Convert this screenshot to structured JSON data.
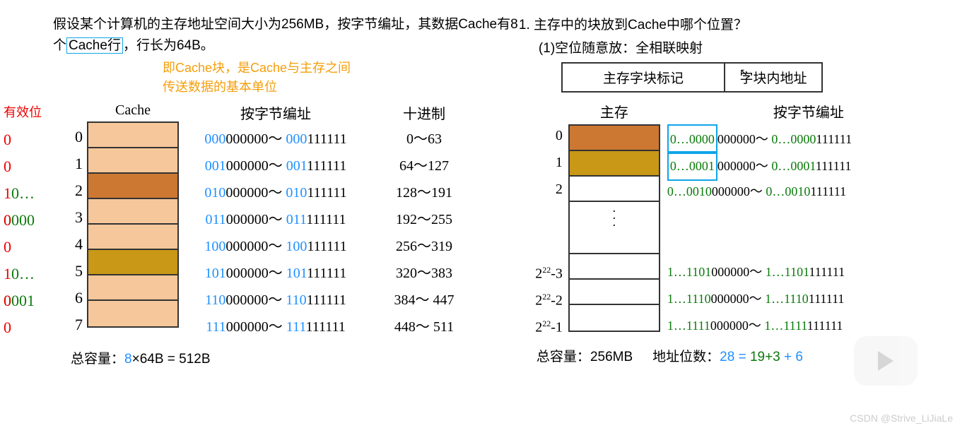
{
  "left": {
    "para_parts": [
      "假设某个计算机的主存地址空间大小为256MB，按字节编址，其数据Cache有8个",
      "Cache行",
      "，行长为64B。"
    ],
    "note_l1": "即Cache块，是Cache与主存之间",
    "note_l2": "传送数据的基本单位",
    "valid_header": "有效位",
    "cache_header": "Cache",
    "addr_header": "按字节编址",
    "dec_header": "十进制",
    "rows": [
      {
        "valid": "0",
        "num": "0",
        "color": "c-light",
        "p1": "000",
        "p2": "000000～",
        "p3": "000",
        "p4": "111111",
        "dec": "0～63"
      },
      {
        "valid": "0",
        "num": "1",
        "color": "c-light",
        "p1": "001",
        "p2": "000000～",
        "p3": "001",
        "p4": "111111",
        "dec": "64～127"
      },
      {
        "valid": "10…0000",
        "num": "2",
        "color": "c-dark",
        "p1": "010",
        "p2": "000000～",
        "p3": "010",
        "p4": "111111",
        "dec": "128～191"
      },
      {
        "valid": "0",
        "num": "3",
        "color": "c-light",
        "p1": "011",
        "p2": "000000～",
        "p3": "011",
        "p4": "111111",
        "dec": "192～255"
      },
      {
        "valid": "0",
        "num": "4",
        "color": "c-light",
        "p1": "100",
        "p2": "000000～",
        "p3": "100",
        "p4": "111111",
        "dec": "256～319"
      },
      {
        "valid": "10…0001",
        "num": "5",
        "color": "c-yellow",
        "p1": "101",
        "p2": "000000～",
        "p3": "101",
        "p4": "111111",
        "dec": "320～383"
      },
      {
        "valid": "0",
        "num": "6",
        "color": "c-light",
        "p1": "110",
        "p2": "000000～",
        "p3": "110",
        "p4": "111111",
        "dec": "384～ 447"
      },
      {
        "valid": "0",
        "num": "7",
        "color": "c-light",
        "p1": "111",
        "p2": "000000～",
        "p3": "111",
        "p4": "111111",
        "dec": "448～ 511"
      }
    ],
    "total_label": "总容量：",
    "total_expr": "8",
    "total_rest": "×64B = 512B"
  },
  "right": {
    "q1": "1. 主存中的块放到Cache中哪个位置？",
    "q1sub": "(1)空位随意放：全相联映射",
    "tag_l": "主存字块标记",
    "tag_r": "字块内地址",
    "mem_header": "主存",
    "addr_header": "按字节编址",
    "rows_top": [
      {
        "num": "0",
        "color": "c-dark",
        "hl": true,
        "p1": "0…0000",
        "p2": "000000～",
        "p3": "0…0000",
        "p4": "111111"
      },
      {
        "num": "1",
        "color": "c-yellow",
        "hl": true,
        "p1": "0…0001",
        "p2": "000000～",
        "p3": "0…0001",
        "p4": "111111"
      },
      {
        "num": "2",
        "color": "",
        "hl": false,
        "p1": "0…0010",
        "p2": "000000～",
        "p3": "0…0010",
        "p4": "111111"
      }
    ],
    "rows_bot": [
      {
        "num": "2²²-3",
        "p1": "1…1101",
        "p2": "000000～",
        "p3": "1…1101",
        "p4": "111111"
      },
      {
        "num": "2²²-2",
        "p1": "1…1110",
        "p2": "000000～",
        "p3": "1…1110",
        "p4": "111111"
      },
      {
        "num": "2²²-1",
        "p1": "1…1111",
        "p2": "000000～",
        "p3": "1…1111",
        "p4": "111111"
      }
    ],
    "total_label": "总容量：",
    "total_val": "256MB",
    "bits_label": "地址位数：",
    "bits_a": "28 = ",
    "bits_b": "19+3",
    "bits_c": " + 6"
  },
  "watermark": "CSDN @Strive_LiJiaLe"
}
